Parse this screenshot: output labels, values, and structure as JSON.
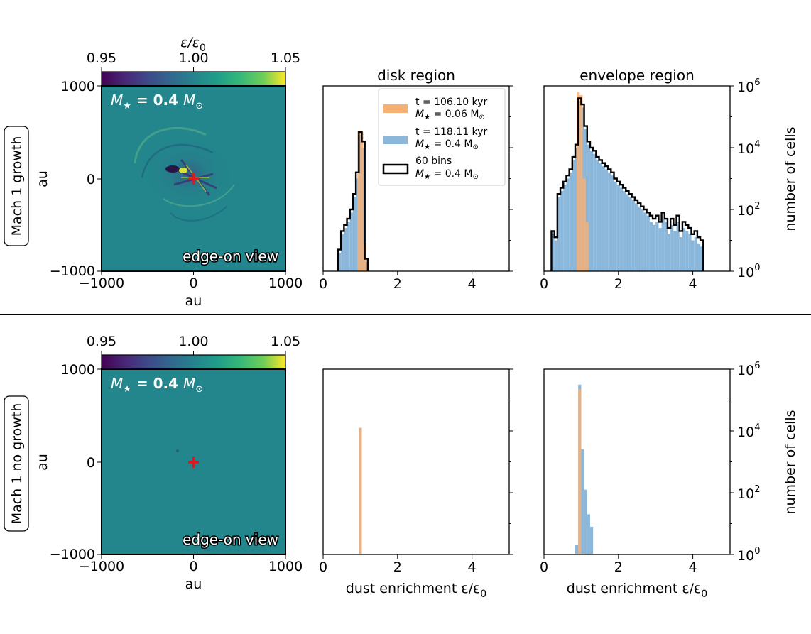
{
  "colors": {
    "orange": "#f6b074",
    "blue": "#8bb7db",
    "overlap": "#cc9a6f",
    "black": "#000000",
    "red_marker": "#e8141c",
    "map_background": "#23868c"
  },
  "rows": [
    {
      "row_label": "Mach 1 growth",
      "colorbar": {
        "label": "ε/ε",
        "label_sub": "0",
        "ticks": [
          "0.95",
          "1.00",
          "1.05"
        ],
        "range": [
          0.95,
          1.05
        ],
        "colormap": "viridis"
      },
      "map": {
        "mass_label_prefix": "M",
        "mass_label_star": "★",
        "mass_value": " = 0.4 ",
        "mass_unit": "M",
        "mass_unit_sub": "⊙",
        "view_label": "edge-on view",
        "y_label": "au",
        "x_label": "au",
        "x_ticks": [
          "−1000",
          "0",
          "1000"
        ],
        "y_ticks": [
          "1000",
          "0",
          "−1000"
        ],
        "range_au": [
          -1000,
          1000
        ]
      }
    },
    {
      "row_label": "Mach 1 no growth",
      "colorbar": {
        "label": "",
        "label_sub": "",
        "ticks": [
          "0.95",
          "1.00",
          "1.05"
        ],
        "range": [
          0.95,
          1.05
        ],
        "colormap": "viridis"
      },
      "map": {
        "mass_label_prefix": "M",
        "mass_label_star": "★",
        "mass_value": " = 0.4 ",
        "mass_unit": "M",
        "mass_unit_sub": "⊙",
        "view_label": "edge-on view",
        "y_label": "au",
        "x_label": "au",
        "x_ticks": [
          "−1000",
          "0",
          "1000"
        ],
        "y_ticks": [
          "1000",
          "0",
          "−1000"
        ],
        "range_au": [
          -1000,
          1000
        ]
      }
    }
  ],
  "hist_axes": {
    "x_ticks": [
      "0",
      "2",
      "4"
    ],
    "x_tick_values": [
      0,
      2,
      4
    ],
    "xlim": [
      0,
      5
    ],
    "ylim_log10": [
      0,
      6
    ],
    "right_y_ticks": [
      {
        "base": "10",
        "exp": "6",
        "value_log10": 6
      },
      {
        "base": "10",
        "exp": "4",
        "value_log10": 4
      },
      {
        "base": "10",
        "exp": "2",
        "value_log10": 2
      },
      {
        "base": "10",
        "exp": "0",
        "value_log10": 0
      }
    ],
    "right_y_label": "number of cells",
    "x_label_prefix": "dust enrichment ε/ε",
    "x_label_sub": "0"
  },
  "panel_titles": {
    "disk": "disk region",
    "envelope": "envelope region"
  },
  "legend": [
    {
      "line1": "t = 106.10 kyr",
      "line2_prefix": "M",
      "line2_value": " = 0.06 M",
      "style": "orange"
    },
    {
      "line1": "t = 118.11 kyr",
      "line2_prefix": "M",
      "line2_value": " = 0.4 M",
      "style": "blue"
    },
    {
      "line1": "60 bins",
      "line2_prefix": "M",
      "line2_value": " = 0.4 M",
      "style": "black"
    }
  ],
  "chart_data": [
    {
      "type": "heatmap",
      "panel": "Mach 1 growth, edge-on view",
      "xlabel": "au",
      "ylabel": "au",
      "xlim": [
        -1000,
        1000
      ],
      "ylim": [
        -1000,
        1000
      ],
      "colorbar": {
        "label": "ε/ε0",
        "range": [
          0.95,
          1.05
        ]
      },
      "marker": {
        "x": 0,
        "y": 0,
        "symbol": "+",
        "color": "#e8141c"
      }
    },
    {
      "type": "bar",
      "panel": "Mach 1 growth, disk region",
      "title": "disk region",
      "yscale": "log",
      "ylim": [
        1,
        1000000
      ],
      "xlim": [
        0,
        5
      ],
      "series": [
        {
          "name": "t = 106.10 kyr, M★ = 0.06 M⊙",
          "style": "filled",
          "x_left": [
            0.92,
            1.0,
            1.08,
            1.16
          ],
          "log10_counts": [
            4.55,
            4.5,
            0.9,
            0.3
          ]
        },
        {
          "name": "t = 118.11 kyr, M★ = 0.4 M⊙",
          "style": "filled",
          "x_left": [
            0.4,
            0.48,
            0.56,
            0.64,
            0.72,
            0.8,
            0.88,
            0.96,
            1.04,
            1.12
          ],
          "log10_counts": [
            0.6,
            1.2,
            1.4,
            1.6,
            1.9,
            2.4,
            3.0,
            4.4,
            4.0,
            0.3
          ]
        },
        {
          "name": "60 bins, M★ = 0.4 M⊙",
          "style": "step",
          "x_left": [
            0.4,
            0.48,
            0.56,
            0.64,
            0.72,
            0.8,
            0.88,
            0.96,
            1.04,
            1.12
          ],
          "log10_counts": [
            0.7,
            1.3,
            1.5,
            1.7,
            2.0,
            2.5,
            3.2,
            4.5,
            4.2,
            0.4
          ]
        }
      ]
    },
    {
      "type": "bar",
      "panel": "Mach 1 growth, envelope region",
      "title": "envelope region",
      "yscale": "log",
      "ylim": [
        1,
        1000000
      ],
      "xlim": [
        0,
        5
      ],
      "series": [
        {
          "name": "t = 106.10 kyr, M★ = 0.06 M⊙",
          "style": "filled",
          "x_left": [
            0.88,
            0.96,
            1.04,
            1.12
          ],
          "log10_counts": [
            5.8,
            5.7,
            3.0,
            1.6
          ]
        },
        {
          "name": "t = 118.11 kyr, M★ = 0.4 M⊙",
          "style": "filled",
          "x_left": [
            0.2,
            0.28,
            0.36,
            0.44,
            0.52,
            0.6,
            0.68,
            0.76,
            0.84,
            0.92,
            1.0,
            1.08,
            1.16,
            1.24,
            1.32,
            1.4,
            1.48,
            1.56,
            1.64,
            1.72,
            1.8,
            1.88,
            1.96,
            2.04,
            2.12,
            2.2,
            2.28,
            2.36,
            2.44,
            2.52,
            2.6,
            2.68,
            2.76,
            2.84,
            2.92,
            3.0,
            3.08,
            3.16,
            3.24,
            3.32,
            3.4,
            3.48,
            3.56,
            3.64,
            3.72,
            3.8,
            3.88,
            3.96,
            4.04,
            4.12,
            4.2
          ],
          "log10_counts": [
            1.2,
            1.0,
            2.4,
            2.6,
            2.8,
            3.0,
            3.2,
            3.6,
            4.0,
            5.5,
            5.3,
            4.6,
            4.1,
            3.9,
            3.8,
            3.6,
            3.5,
            3.4,
            3.3,
            3.2,
            3.1,
            2.9,
            2.8,
            2.7,
            2.6,
            2.5,
            2.4,
            2.3,
            2.2,
            2.1,
            2.0,
            1.9,
            1.8,
            1.6,
            1.5,
            1.6,
            1.4,
            1.7,
            1.6,
            1.2,
            1.5,
            1.3,
            1.6,
            1.1,
            1.4,
            1.3,
            1.2,
            1.0,
            1.1,
            0.9,
            0.8
          ]
        },
        {
          "name": "60 bins, M★ = 0.4 M⊙",
          "style": "step",
          "x_left": [
            0.2,
            0.28,
            0.36,
            0.44,
            0.52,
            0.6,
            0.68,
            0.76,
            0.84,
            0.92,
            1.0,
            1.08,
            1.16,
            1.24,
            1.32,
            1.4,
            1.48,
            1.56,
            1.64,
            1.72,
            1.8,
            1.88,
            1.96,
            2.04,
            2.12,
            2.2,
            2.28,
            2.36,
            2.44,
            2.52,
            2.6,
            2.68,
            2.76,
            2.84,
            2.92,
            3.0,
            3.08,
            3.16,
            3.24,
            3.32,
            3.4,
            3.48,
            3.56,
            3.64,
            3.72,
            3.8,
            3.88,
            3.96,
            4.04,
            4.12,
            4.2
          ],
          "log10_counts": [
            1.3,
            1.1,
            2.5,
            2.7,
            2.9,
            3.1,
            3.3,
            3.7,
            4.1,
            5.6,
            5.4,
            4.7,
            4.2,
            4.0,
            3.9,
            3.7,
            3.6,
            3.5,
            3.4,
            3.3,
            3.2,
            3.0,
            2.9,
            2.8,
            2.7,
            2.6,
            2.5,
            2.4,
            2.3,
            2.2,
            2.1,
            2.0,
            1.9,
            1.8,
            1.7,
            1.8,
            1.6,
            1.9,
            1.7,
            1.4,
            1.7,
            1.5,
            1.8,
            1.3,
            1.6,
            1.5,
            1.4,
            1.2,
            1.3,
            1.1,
            1.0
          ]
        }
      ]
    },
    {
      "type": "heatmap",
      "panel": "Mach 1 no growth, edge-on view",
      "xlabel": "au",
      "ylabel": "au",
      "xlim": [
        -1000,
        1000
      ],
      "ylim": [
        -1000,
        1000
      ],
      "colorbar": {
        "label": "ε/ε0",
        "range": [
          0.95,
          1.05
        ]
      },
      "marker": {
        "x": 0,
        "y": 0,
        "symbol": "+",
        "color": "#e8141c"
      }
    },
    {
      "type": "bar",
      "panel": "Mach 1 no growth, disk region",
      "yscale": "log",
      "ylim": [
        1,
        1000000
      ],
      "xlim": [
        0,
        5
      ],
      "xlabel": "dust enrichment ε/ε0",
      "series": [
        {
          "name": "t = 106.10 kyr, M★ = 0.06 M⊙",
          "style": "filled",
          "x_left": [
            0.96
          ],
          "log10_counts": [
            4.1
          ]
        },
        {
          "name": "t = 118.11 kyr, M★ = 0.4 M⊙",
          "style": "filled",
          "x_left": [
            0.96
          ],
          "log10_counts": [
            4.1
          ]
        }
      ]
    },
    {
      "type": "bar",
      "panel": "Mach 1 no growth, envelope region",
      "yscale": "log",
      "ylim": [
        1,
        1000000
      ],
      "xlim": [
        0,
        5
      ],
      "xlabel": "dust enrichment ε/ε0",
      "series": [
        {
          "name": "t = 106.10 kyr, M★ = 0.06 M⊙",
          "style": "filled",
          "x_left": [
            0.92
          ],
          "log10_counts": [
            5.35
          ]
        },
        {
          "name": "t = 118.11 kyr, M★ = 0.4 M⊙",
          "style": "filled",
          "x_left": [
            0.84,
            0.92,
            1.0,
            1.08,
            1.16,
            1.24
          ],
          "log10_counts": [
            0.3,
            5.5,
            3.4,
            2.1,
            1.3,
            0.9
          ]
        }
      ]
    }
  ]
}
